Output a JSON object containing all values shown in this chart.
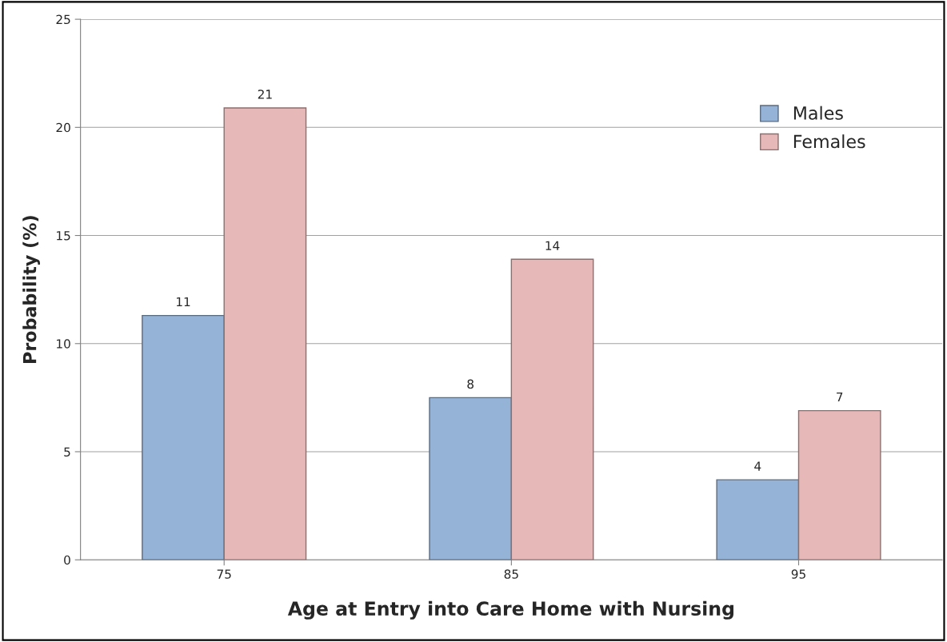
{
  "chart_data": {
    "type": "bar",
    "xlabel": "Age at Entry into Care Home with Nursing",
    "ylabel": "Probability (%)",
    "categories": [
      "75",
      "85",
      "95"
    ],
    "series": [
      {
        "name": "Males",
        "color": "#95b3d7",
        "values": [
          11.3,
          7.5,
          3.7
        ],
        "value_labels": [
          "11",
          "8",
          "4"
        ]
      },
      {
        "name": "Females",
        "color": "#e6b9b8",
        "values": [
          20.9,
          13.9,
          6.9
        ],
        "value_labels": [
          "21",
          "14",
          "7"
        ]
      }
    ],
    "ylim": [
      0,
      25
    ],
    "yticks": [
      0,
      5,
      10,
      15,
      20,
      25
    ],
    "grid": "y",
    "legend": "top right"
  }
}
